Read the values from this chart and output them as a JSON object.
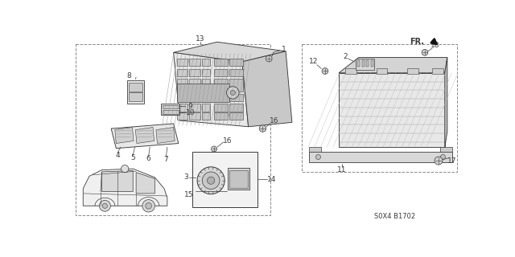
{
  "bg_color": "#ffffff",
  "line_color": "#3a3a3a",
  "diagram_code": "S0X4 B1702",
  "lw": 0.65
}
